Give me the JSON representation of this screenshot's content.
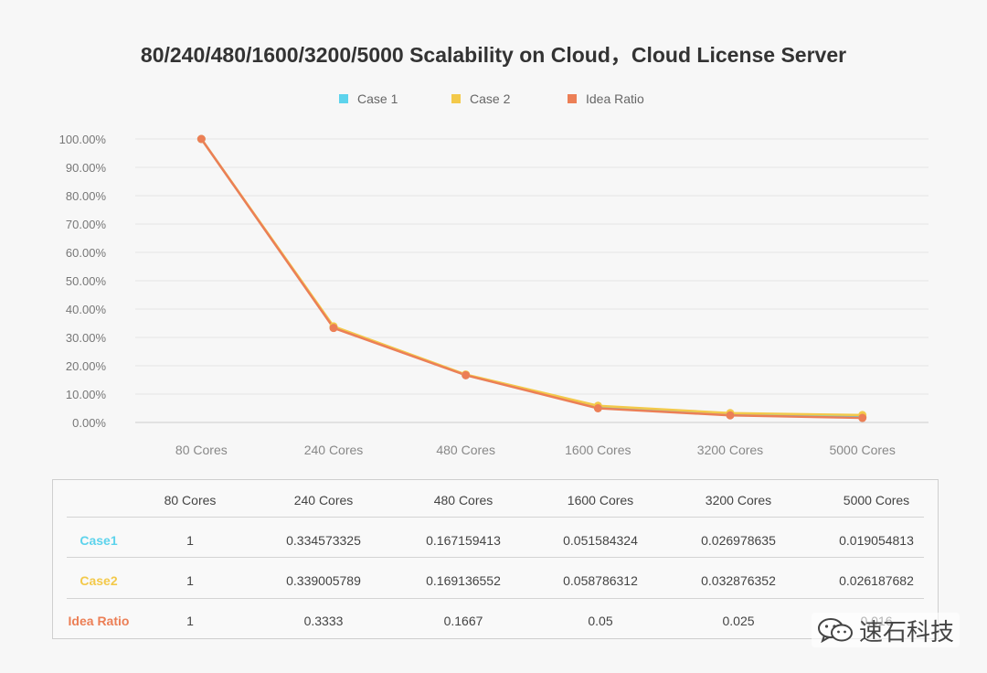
{
  "chart_data": {
    "type": "line",
    "title": "80/240/480/1600/3200/5000 Scalability on Cloud，Cloud License Server",
    "categories": [
      "80 Cores",
      "240 Cores",
      "480 Cores",
      "1600 Cores",
      "3200 Cores",
      "5000 Cores"
    ],
    "ylim": [
      0,
      1
    ],
    "yticks": [
      "0.00%",
      "10.00%",
      "20.00%",
      "30.00%",
      "40.00%",
      "50.00%",
      "60.00%",
      "70.00%",
      "80.00%",
      "90.00%",
      "100.00%"
    ],
    "grid": true,
    "legend_position": "top-center",
    "series": [
      {
        "name": "Case 1",
        "color": "#5dd3ec",
        "values": [
          1,
          0.334573325,
          0.167159413,
          0.051584324,
          0.026978635,
          0.019054813
        ]
      },
      {
        "name": "Case 2",
        "color": "#f3c94a",
        "values": [
          1,
          0.339005789,
          0.169136552,
          0.058786312,
          0.032876352,
          0.026187682
        ]
      },
      {
        "name": "Idea Ratio",
        "color": "#ec7f56",
        "values": [
          1,
          0.3333,
          0.1667,
          0.05,
          0.025,
          0.016
        ]
      }
    ]
  },
  "table": {
    "header": [
      "80 Cores",
      "240 Cores",
      "480 Cores",
      "1600 Cores",
      "3200 Cores",
      "5000 Cores"
    ],
    "rows": [
      {
        "label": "Case1",
        "color": "#5dd3ec",
        "cells": [
          "1",
          "0.334573325",
          "0.167159413",
          "0.051584324",
          "0.026978635",
          "0.019054813"
        ]
      },
      {
        "label": "Case2",
        "color": "#f3c94a",
        "cells": [
          "1",
          "0.339005789",
          "0.169136552",
          "0.058786312",
          "0.032876352",
          "0.026187682"
        ]
      },
      {
        "label": "Idea Ratio",
        "color": "#ec7f56",
        "cells": [
          "1",
          "0.3333",
          "0.1667",
          "0.05",
          "0.025",
          "0.016"
        ]
      }
    ]
  },
  "watermark": {
    "text": "速石科技",
    "icon": "wechat-icon"
  }
}
